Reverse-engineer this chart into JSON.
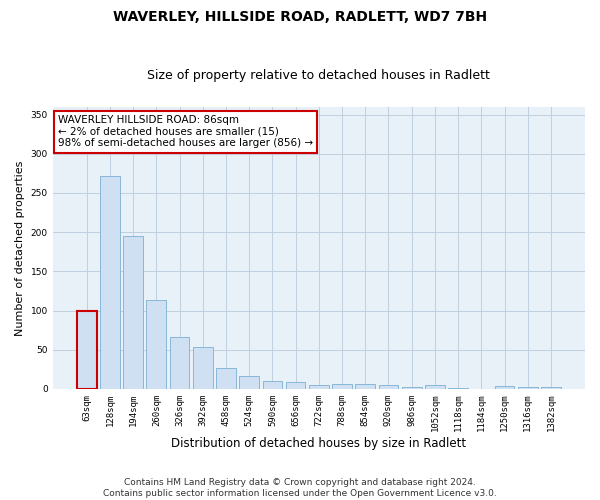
{
  "title": "WAVERLEY, HILLSIDE ROAD, RADLETT, WD7 7BH",
  "subtitle": "Size of property relative to detached houses in Radlett",
  "xlabel": "Distribution of detached houses by size in Radlett",
  "ylabel": "Number of detached properties",
  "categories": [
    "63sqm",
    "128sqm",
    "194sqm",
    "260sqm",
    "326sqm",
    "392sqm",
    "458sqm",
    "524sqm",
    "590sqm",
    "656sqm",
    "722sqm",
    "788sqm",
    "854sqm",
    "920sqm",
    "986sqm",
    "1052sqm",
    "1118sqm",
    "1184sqm",
    "1250sqm",
    "1316sqm",
    "1382sqm"
  ],
  "values": [
    100,
    272,
    195,
    114,
    66,
    53,
    27,
    16,
    10,
    9,
    5,
    6,
    6,
    5,
    2,
    5,
    1,
    0,
    4,
    3,
    2
  ],
  "bar_color": "#cfe0f2",
  "bar_edge_color": "#7bafd4",
  "highlight_bar_index": 0,
  "highlight_edge_color": "#cc0000",
  "annotation_box_text": "WAVERLEY HILLSIDE ROAD: 86sqm\n← 2% of detached houses are smaller (15)\n98% of semi-detached houses are larger (856) →",
  "ylim": [
    0,
    360
  ],
  "yticks": [
    0,
    50,
    100,
    150,
    200,
    250,
    300,
    350
  ],
  "background_color": "#ffffff",
  "axes_bg_color": "#e8f0f8",
  "grid_color": "#c0cfdf",
  "title_fontsize": 10,
  "subtitle_fontsize": 9,
  "xlabel_fontsize": 8.5,
  "ylabel_fontsize": 8,
  "tick_fontsize": 6.5,
  "annotation_fontsize": 7.5,
  "footer_fontsize": 6.5,
  "footer_text": "Contains HM Land Registry data © Crown copyright and database right 2024.\nContains public sector information licensed under the Open Government Licence v3.0."
}
